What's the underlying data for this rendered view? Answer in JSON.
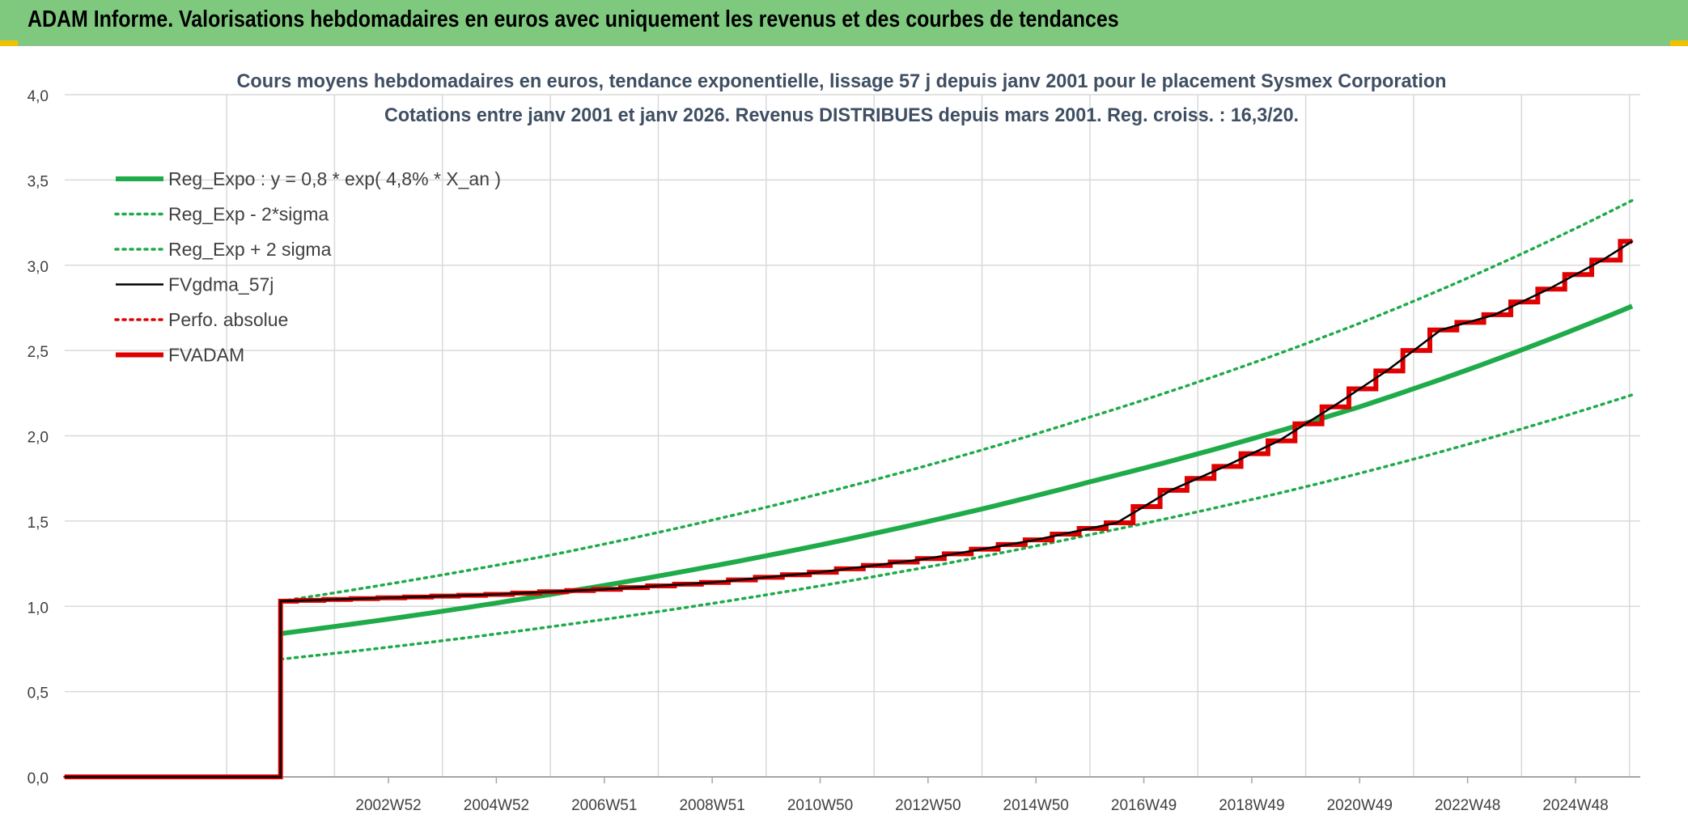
{
  "header": {
    "title": "ADAM Informe. Valorisations hebdomadaires en euros avec uniquement les revenus et des courbes de tendances"
  },
  "colors": {
    "header_bg": "#7fc97f",
    "reg_expo": "#1fab4a",
    "fvgdma": "#000000",
    "fvadam": "#e00000",
    "grid": "#d9d9d9",
    "axis_text": "#404040",
    "title_text": "#3f4f63"
  },
  "chart_data": {
    "type": "line",
    "title": "Cours moyens hebdomadaires en euros, tendance exponentielle, lissage 57 j depuis janv 2001 pour le placement Sysmex Corporation",
    "subtitle": "Cotations entre janv 2001 et janv 2026. Revenus DISTRIBUES depuis mars 2001. Reg. croiss. : 16,3/20.",
    "xlabel": "",
    "ylabel": "",
    "x_range_years": [
      1997,
      2026.2
    ],
    "x_tick_labels": [
      "2002W52",
      "2004W52",
      "2006W51",
      "2008W51",
      "2010W50",
      "2012W50",
      "2014W50",
      "2016W49",
      "2018W49",
      "2020W49",
      "2022W48",
      "2024W48"
    ],
    "x_tick_years": [
      2003.0,
      2005.0,
      2007.0,
      2009.0,
      2011.0,
      2013.0,
      2015.0,
      2017.0,
      2019.0,
      2021.0,
      2023.0,
      2025.0
    ],
    "ylim": [
      0,
      4
    ],
    "y_ticks": [
      "0,0",
      "0,5",
      "1,0",
      "1,5",
      "2,0",
      "2,5",
      "3,0",
      "3,5",
      "4,0"
    ],
    "y_tick_values": [
      0,
      0.5,
      1,
      1.5,
      2,
      2.5,
      3,
      3.5,
      4
    ],
    "grid": true,
    "legend_position": "top-left",
    "start_year": 2001.0,
    "end_year": 2026.05,
    "series": [
      {
        "name": "Reg_Expo : y = 0,8 * exp( 4,8% *  X_an )",
        "style": "solid-thick",
        "color": "#1fab4a",
        "x": [
          2001.0,
          2006.0,
          2011.0,
          2016.0,
          2021.0,
          2026.05
        ],
        "y": [
          0.84,
          1.07,
          1.36,
          1.73,
          2.17,
          2.76
        ]
      },
      {
        "name": "Reg_Exp - 2*sigma",
        "style": "dotted",
        "color": "#1fab4a",
        "x": [
          2001.0,
          2006.0,
          2011.0,
          2016.0,
          2021.0,
          2026.05
        ],
        "y": [
          0.69,
          0.88,
          1.12,
          1.42,
          1.78,
          2.24
        ]
      },
      {
        "name": "Reg_Exp + 2 sigma",
        "style": "dotted",
        "color": "#1fab4a",
        "x": [
          2001.0,
          2006.0,
          2011.0,
          2016.0,
          2021.0,
          2026.05
        ],
        "y": [
          1.03,
          1.3,
          1.66,
          2.11,
          2.66,
          3.38
        ]
      },
      {
        "name": "FVgdma_57j",
        "style": "solid-thin",
        "color": "#000000",
        "x": [
          1997.0,
          2001.0,
          2001.0,
          2003.0,
          2005.0,
          2007.0,
          2009.0,
          2011.0,
          2013.0,
          2015.0,
          2016.5,
          2017.5,
          2018.5,
          2019.5,
          2020.5,
          2021.5,
          2022.5,
          2023.5,
          2024.5,
          2025.5,
          2026.05
        ],
        "y": [
          0.0,
          0.0,
          1.03,
          1.05,
          1.07,
          1.1,
          1.14,
          1.2,
          1.28,
          1.39,
          1.49,
          1.68,
          1.82,
          1.97,
          2.17,
          2.38,
          2.62,
          2.71,
          2.86,
          3.03,
          3.14
        ]
      },
      {
        "name": "Perfo. absolue",
        "style": "dotted",
        "color": "#e00000",
        "x": [
          1997.0,
          2001.0,
          2001.0,
          2003.0,
          2005.0,
          2007.0,
          2009.0,
          2011.0,
          2013.0,
          2015.0,
          2016.5,
          2017.5,
          2018.5,
          2019.5,
          2020.5,
          2021.5,
          2022.5,
          2023.5,
          2024.5,
          2025.5,
          2026.05
        ],
        "y": [
          0.0,
          0.0,
          1.03,
          1.05,
          1.07,
          1.1,
          1.14,
          1.2,
          1.28,
          1.39,
          1.49,
          1.68,
          1.82,
          1.97,
          2.17,
          2.38,
          2.62,
          2.71,
          2.86,
          3.03,
          3.14
        ]
      },
      {
        "name": "FVADAM",
        "style": "solid-thick",
        "color": "#e00000",
        "x": [
          1997.0,
          2001.0,
          2001.0,
          2003.0,
          2005.0,
          2007.0,
          2009.0,
          2011.0,
          2013.0,
          2015.0,
          2016.5,
          2017.5,
          2018.5,
          2019.5,
          2020.5,
          2021.5,
          2022.5,
          2023.5,
          2024.5,
          2025.5,
          2026.05
        ],
        "y": [
          0.0,
          0.0,
          1.03,
          1.05,
          1.07,
          1.1,
          1.14,
          1.2,
          1.28,
          1.39,
          1.49,
          1.68,
          1.82,
          1.97,
          2.17,
          2.38,
          2.62,
          2.71,
          2.86,
          3.03,
          3.14
        ]
      }
    ]
  }
}
